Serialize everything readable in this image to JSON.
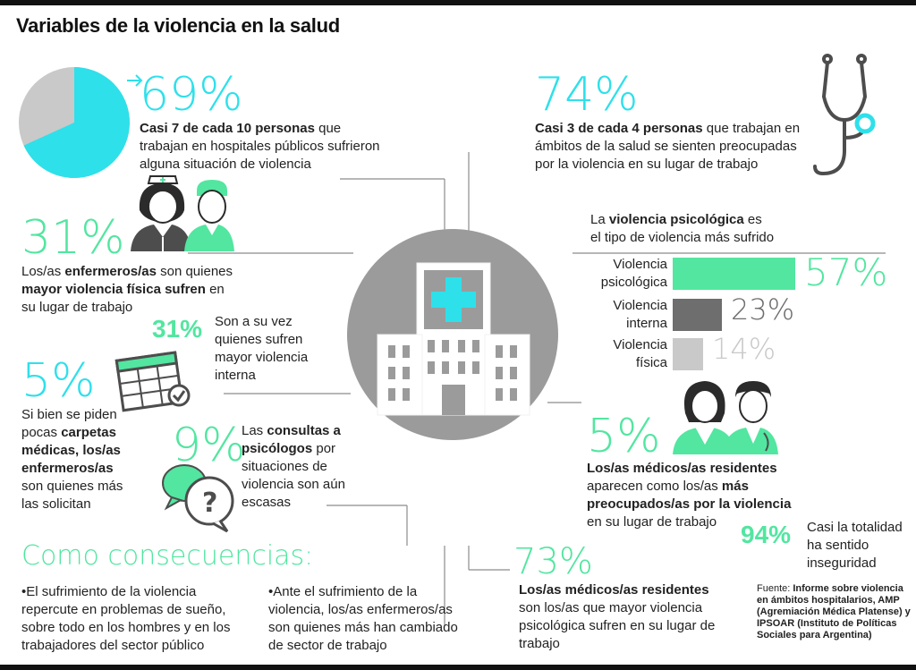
{
  "title": "Variables de la violencia en la salud",
  "colors": {
    "cyan": "#2ee0ea",
    "green": "#52e6a0",
    "dark_gray": "#6e6e6e",
    "light_gray": "#c9c9c9",
    "circle": "#9b9b9b"
  },
  "top_left": {
    "percent": "69%",
    "text_bold": "Casi 7 de cada 10 personas",
    "text_rest": " que trabajan en hospitales públicos sufrieron alguna situación de violencia",
    "pie_value": 69
  },
  "top_right": {
    "percent": "74%",
    "text_bold": "Casi 3 de cada 4 personas",
    "text_rest": " que trabajan en ámbitos de la salud se sienten preocupadas por la violencia en su lugar de trabajo"
  },
  "nurses": {
    "percent": "31%",
    "line1_a": "Los/as ",
    "line1_b": "enfermeros/as",
    "line1_c": " son quienes",
    "line2_b": "mayor violencia física sufren",
    "line2_c": " en",
    "line3": "su lugar de trabajo"
  },
  "nurses_internal": {
    "percent": "31%",
    "text": "Son a su vez quienes sufren mayor violencia interna"
  },
  "leave": {
    "percent": "5%",
    "text_a": "Si bien se piden pocas ",
    "text_b": "carpetas médicas, los/as enfermeros/as",
    "text_c": " son quienes más las solicitan"
  },
  "psych": {
    "percent": "9%",
    "text_a": "Las ",
    "text_b": "consultas a psicólogos",
    "text_c": " por situaciones de violencia son aún escasas"
  },
  "violence_type": {
    "intro_a": "La ",
    "intro_b": "violencia psicológica",
    "intro_c": " es",
    "intro_line2": "el tipo de violencia más sufrido",
    "bars": [
      {
        "label1": "Violencia",
        "label2": "psicológica",
        "value": 57,
        "display": "57%",
        "color": "#52e6a0",
        "text_color": "#52e6a0"
      },
      {
        "label1": "Violencia",
        "label2": "interna",
        "value": 23,
        "display": "23%",
        "color": "#6e6e6e",
        "text_color": "#6e6e6e"
      },
      {
        "label1": "Violencia",
        "label2": "física",
        "value": 14,
        "display": "14%",
        "color": "#c9c9c9",
        "text_color": "#c9c9c9"
      }
    ]
  },
  "residents": {
    "percent": "5%",
    "line1_b": "Los/as médicos/as residentes",
    "line2_a": "aparecen como los/as ",
    "line2_b": "más",
    "line3_b": "preocupados/as por la violencia",
    "line4": "en su lugar de trabajo"
  },
  "insecurity": {
    "percent": "94%",
    "text": "Casi la totalidad ha sentido inseguridad"
  },
  "consequences": {
    "heading": "Como consecuencias:",
    "bullet1": "•El sufrimiento de la violencia repercute en problemas de sueño, sobre todo en los hombres y en los trabajadores del sector público",
    "bullet2": "•Ante el sufrimiento de la violencia, los/as enfermeros/as son quienes más han cambiado de sector de trabajo"
  },
  "residents_psych": {
    "percent": "73%",
    "text_b": "Los/as médicos/as residentes",
    "text_rest": "son los/as que mayor violencia psicológica sufren en su lugar de trabajo"
  },
  "source": {
    "label": "Fuente: ",
    "text": "Informe sobre violencia en ámbitos hospitalarios, AMP (Agremiación Médica Platense) y IPSOAR (Instituto de Políticas Sociales para Argentina)"
  },
  "icons": [
    "pie-chart-icon",
    "stethoscope-icon",
    "nurses-icon",
    "calendar-check-icon",
    "speech-bubbles-question-icon",
    "hospital-icon",
    "doctors-icon"
  ]
}
